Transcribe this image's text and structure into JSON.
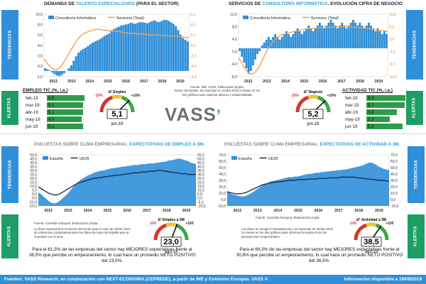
{
  "top_left": {
    "title_a": "DEMANDA DE ",
    "title_hl": "TALENTO ESPECIALIZADO",
    "title_b": " (PARA EL SECTOR)",
    "side": "TENDENCIAS"
  },
  "top_right": {
    "title_a": "SERVICIOS DE ",
    "title_hl": "CONSULTORÍA INFORMÁTICA",
    "title_b": ". EVOLUCIÓN CIFRA DE NEGOCIO",
    "side": "TENDENCIAS"
  },
  "source_note": {
    "l1": "Fuente: INE, VASS. Elaboración propia.",
    "l2": "Datos mensuales. Se expresan en media móvil 3 meses  en los",
    "l3": "dos gráficos para suavizar atípicos y estacionalidad."
  },
  "alerts_left": {
    "side": "ALERTAS",
    "table_title": "EMPLEO TIC (%, i.a.)",
    "rows": [
      {
        "m": "feb-19",
        "v": "5,5"
      },
      {
        "m": "mar-19",
        "v": "5,1"
      },
      {
        "m": "abr-19",
        "v": "5,1"
      },
      {
        "m": "may-19",
        "v": "4,9"
      },
      {
        "m": "jun-19",
        "v": "5,1"
      }
    ],
    "gauge": {
      "label": "Δ* Empleo",
      "min": "-10%",
      "max": "+10%",
      "value": "5,1",
      "date": "jun-19",
      "value_num": 5.1,
      "range": [
        -10,
        10
      ]
    }
  },
  "alerts_right": {
    "side": "ALERTAS",
    "table_title": "ACTIVIDAD TIC (%, i.a.)",
    "rows": [
      {
        "m": "feb-19",
        "v": "5,9"
      },
      {
        "m": "mar-19",
        "v": "5,7"
      },
      {
        "m": "abr-19",
        "v": "3,8"
      },
      {
        "m": "may-19",
        "v": "2,2"
      },
      {
        "m": "jun-19",
        "v": "5,2"
      }
    ],
    "gauge": {
      "label": "Δ* Negocio",
      "min": "-10%",
      "max": "+10%",
      "value": "5,2",
      "date": "jun-19",
      "value_num": 5.2,
      "range": [
        -10,
        10
      ]
    }
  },
  "logo": {
    "text": "VASS"
  },
  "bottom_left": {
    "title_a": "ENCUESTAS SOBRE CLIMA EMPRESARIAL: ",
    "title_hl": "EXPECTATIVAS DE EMPLEO A 3M.",
    "side_top": "TENDENCIAS",
    "side_bottom": "ALERTAS",
    "source": "Fuente: Comisión Europea. Elaboración propia.",
    "note": "La línea representa la evolución del sector para el caso de UE28 ( área de referencia (comparativa) para los datos del caso de España que se muestran con el área.",
    "gauge": {
      "label": "Δ* Empleo a 3M",
      "min": "-100",
      "max": "+100",
      "value": "23,0",
      "date": "ago-19",
      "value_num": 23.0,
      "range": [
        -100,
        100
      ]
    },
    "paragraph": "Para el 61,5% de las empresas del sector hay MEJORES expectativas frente al 38,5% que percibe un empeoramiento, lo cual hace un promedio NETO POSITIVO del 23,0%."
  },
  "bottom_right": {
    "title_a": "ENCUESTAS SOBRE CLIMA EMPRESARIAL: ",
    "title_hl": "EXPECTATIVAS DE ACTIVIDAD A 3M.",
    "side_top": "TENDENCIAS",
    "side_bottom": "ALERTAS",
    "source": "Fuente: Comisión Europea. Elaboración propia.",
    "note": "Los datos se recogen mensualmente y  se expresan en media móvil 12 meses  en los dos gráficos  para observar la tendencia de las percepciones empresariales.",
    "gauge": {
      "label": "Δ* Actividad a 3M",
      "min": "-100",
      "max": "+100",
      "value": "38,5",
      "date": "ago-19",
      "value_num": 38.5,
      "range": [
        -100,
        100
      ]
    },
    "paragraph": "Para el 69,3% de las empresas del sector hay MEJORES expectativas frente al 30,8% que percibe un empeoramiento, lo cual hace un promedio NETO POSITIVO del 38,5%."
  },
  "footer": {
    "left": "Fuentes: VASS Research, en colaboración con NEXT-ECONOMIA (CEPREDE), a partir de INE y Comisión Europea. VASS ©",
    "right": "Información disponible a 18/09/2019"
  },
  "colors": {
    "bar": "#2f8fd8",
    "line_orange": "#f0a050",
    "line_dark": "#15305a",
    "green": "#1e9e64"
  },
  "chart_data": [
    {
      "type": "bar",
      "id": "talent",
      "series": [
        {
          "name": "Consultoría Informática",
          "kind": "bar",
          "color": "#2f8fd8"
        },
        {
          "name": "Servicios (Total)",
          "kind": "line",
          "color": "#f0a050"
        }
      ],
      "x": [
        "2012",
        "2013",
        "2014",
        "2015",
        "2016",
        "2017",
        "2018",
        "2019"
      ],
      "y1lim": [
        -1.0,
        10.0
      ],
      "y1ticks": [
        "10,0",
        "8,0",
        "6,0",
        "4,0",
        "2,0",
        "0,0",
        "-1,0"
      ],
      "y2lim": [
        -6.0,
        6.0
      ],
      "y2ticks": [
        "6,0",
        "4,0",
        "2,0",
        "0,0",
        "-2,0",
        "-4,0",
        "-6,0"
      ],
      "bars": [
        0.5,
        0.3,
        0.1,
        -0.3,
        -0.6,
        -0.8,
        -0.9,
        -0.7,
        -0.4,
        0.0,
        0.5,
        1.0,
        1.8,
        2.6,
        3.2,
        3.6,
        3.9,
        4.1,
        4.4,
        4.7,
        5.0,
        5.2,
        5.4,
        5.6,
        5.9,
        6.2,
        6.4,
        6.6,
        7.0,
        7.4,
        7.6,
        7.8,
        8.0,
        8.1,
        8.2,
        8.3,
        8.5,
        8.4,
        8.3,
        8.5,
        8.6,
        8.6,
        8.5,
        8.4,
        8.6,
        8.8,
        8.9,
        8.7,
        8.6,
        8.8,
        9.0,
        9.0,
        8.8,
        8.6,
        8.3,
        7.9,
        7.2,
        6.4,
        5.8,
        5.5,
        5.2
      ],
      "line": [
        -2.5,
        -3.2,
        -3.8,
        -4.3,
        -4.6,
        -4.7,
        -4.5,
        -4.0,
        -3.4,
        -2.6,
        -1.8,
        -1.0,
        -0.2,
        0.6,
        1.2,
        1.7,
        2.1,
        2.4,
        2.6,
        2.8,
        2.9,
        3.0,
        3.1,
        3.1,
        3.0,
        2.9,
        2.9,
        2.8,
        2.8,
        2.7,
        2.7,
        2.7,
        2.6,
        2.5,
        2.4,
        2.4,
        2.3,
        2.3,
        2.3,
        2.2,
        2.2,
        2.2,
        2.1,
        2.1,
        2.0,
        2.0,
        2.0,
        2.0,
        1.9,
        1.9,
        1.9,
        1.9,
        1.8,
        1.8,
        1.8,
        1.8,
        1.7,
        1.7,
        1.6,
        1.5,
        1.5
      ]
    },
    {
      "type": "bar",
      "id": "consulting",
      "series": [
        {
          "name": "Consultoría Informática",
          "kind": "bar",
          "color": "#2f8fd8"
        },
        {
          "name": "Servicios (Total)",
          "kind": "line",
          "color": "#f0a050"
        }
      ],
      "x": [
        "2012",
        "2013",
        "2014",
        "2015",
        "2016",
        "2017",
        "2018",
        "2019"
      ],
      "y1lim": [
        -10.0,
        12.0
      ],
      "y1ticks": [
        "12,0",
        "8,0",
        "4,0",
        "0,0",
        "-4,0",
        "-8,0"
      ],
      "y2lim": [
        -10.0,
        10.0
      ],
      "y2ticks": [
        "10,0",
        "6,0",
        "2,0",
        "-2,0",
        "-6,0",
        "-10,0"
      ],
      "bars": [
        -1,
        -3,
        -5,
        -7,
        -9,
        -8,
        -6,
        -4,
        -2,
        -1,
        1,
        2,
        3,
        4,
        3,
        4,
        5,
        4,
        3,
        4,
        5,
        6,
        5,
        4,
        5,
        6,
        7,
        6,
        5,
        6,
        7,
        8,
        7,
        6,
        7,
        8,
        9,
        8,
        7,
        8,
        9,
        10,
        9,
        8,
        7,
        8,
        9,
        8,
        7,
        8,
        9,
        10,
        9,
        8,
        9,
        8,
        7,
        8,
        9,
        8,
        7,
        6,
        7,
        6,
        5,
        6,
        5
      ],
      "line": [
        -4,
        -5,
        -6.5,
        -7.5,
        -8.5,
        -9,
        -9.2,
        -8.8,
        -8,
        -7,
        -5.5,
        -4,
        -2.5,
        -1,
        0,
        1,
        1.8,
        2.5,
        3,
        3.4,
        3.6,
        3.8,
        4,
        4.2,
        4.3,
        4.5,
        4.6,
        4.8,
        5,
        5.1,
        5.2,
        5.3,
        5.4,
        5.5,
        5.5,
        5.6,
        5.7,
        5.7,
        5.8,
        5.8,
        5.8,
        5.9,
        5.9,
        5.9,
        6,
        6,
        6,
        6,
        6,
        5.9,
        5.9,
        5.8,
        5.8,
        5.7,
        5.6,
        5.6,
        5.5,
        5.4,
        5.3,
        5.2,
        5.1,
        5,
        4.9,
        4.8,
        4.7,
        4.6,
        4.5
      ]
    },
    {
      "type": "area",
      "id": "employment_exp",
      "series": [
        {
          "name": "España",
          "kind": "area",
          "color": "#2f8fd8"
        },
        {
          "name": "UE28",
          "kind": "line",
          "color": "#15305a"
        }
      ],
      "x": [
        "2012",
        "2013",
        "2014",
        "2015",
        "2016",
        "2017",
        "2018",
        "2019"
      ],
      "y1lim": [
        -15.0,
        50.0
      ],
      "y1ticks": [
        "50,0",
        "45,0",
        "40,0",
        "35,0",
        "30,0",
        "25,0",
        "20,0",
        "15,0",
        "10,0",
        "5,0",
        "0,0",
        "-5,0",
        "-10,0",
        "-15,0"
      ],
      "y2lim": [
        -10.0,
        55.0
      ],
      "y2ticks": [
        "55,0",
        "50,0",
        "45,0",
        "40,0",
        "35,0",
        "30,0",
        "25,0",
        "20,0",
        "15,0",
        "10,0",
        "5,0",
        "0,0",
        "-5,0",
        "-10,0"
      ],
      "area": [
        2,
        0,
        -3,
        -6,
        -9,
        -11,
        -12,
        -11,
        -9,
        -6,
        -3,
        0,
        4,
        8,
        12,
        15,
        18,
        20,
        22,
        24,
        25,
        27,
        28,
        29,
        30,
        30,
        31,
        32,
        33,
        33,
        34,
        34,
        35,
        35,
        36,
        36,
        37,
        37,
        37,
        38,
        38,
        38,
        39,
        39,
        39,
        40,
        40,
        41,
        41,
        42,
        43,
        43,
        44,
        45,
        45,
        44,
        43,
        42,
        40,
        39,
        38
      ],
      "line": [
        14,
        12,
        10,
        8,
        6,
        5,
        4,
        4,
        5,
        7,
        9,
        11,
        13,
        15,
        17,
        19,
        20,
        21,
        22,
        23,
        24,
        25,
        25,
        26,
        26,
        27,
        27,
        28,
        28,
        29,
        29,
        29,
        30,
        30,
        31,
        31,
        32,
        32,
        32,
        33,
        33,
        33,
        34,
        34,
        34,
        35,
        35,
        35,
        34,
        34,
        33,
        33,
        32,
        32,
        31,
        31,
        31,
        30,
        30,
        30,
        30
      ]
    },
    {
      "type": "area",
      "id": "activity_exp",
      "series": [
        {
          "name": "España",
          "kind": "area",
          "color": "#2f8fd8"
        },
        {
          "name": "UE28",
          "kind": "line",
          "color": "#15305a"
        }
      ],
      "x": [
        "2012",
        "2013",
        "2014",
        "2015",
        "2016",
        "2017",
        "2018",
        "2019"
      ],
      "y1lim": [
        -10.0,
        70.0
      ],
      "y1ticks": [
        "70,0",
        "60,0",
        "50,0",
        "40,0",
        "30,0",
        "20,0",
        "10,0",
        "0,0",
        "-10,0"
      ],
      "y2lim": [
        -10.0,
        70.0
      ],
      "y2ticks": [
        "70,0",
        "60,0",
        "50,0",
        "40,0",
        "30,0",
        "20,0",
        "10,0",
        "0,0",
        "-10,0"
      ],
      "area": [
        12,
        10,
        8,
        7,
        6,
        5,
        5,
        6,
        8,
        10,
        13,
        16,
        19,
        22,
        24,
        26,
        28,
        29,
        30,
        31,
        32,
        33,
        34,
        35,
        35,
        36,
        36,
        37,
        38,
        39,
        40,
        40,
        41,
        42,
        42,
        43,
        43,
        44,
        44,
        45,
        45,
        46,
        46,
        47,
        47,
        48,
        49,
        50,
        51,
        52,
        53,
        55,
        57,
        58,
        57,
        55,
        52,
        50,
        48,
        47,
        46
      ],
      "line": [
        12,
        11,
        10,
        9,
        9,
        9,
        10,
        11,
        13,
        15,
        17,
        19,
        21,
        23,
        24,
        25,
        26,
        27,
        27,
        28,
        28,
        29,
        29,
        30,
        30,
        30,
        31,
        31,
        31,
        31,
        32,
        32,
        32,
        32,
        33,
        33,
        33,
        33,
        34,
        34,
        34,
        34,
        35,
        35,
        35,
        35,
        35,
        35,
        34,
        34,
        33,
        33,
        32,
        32,
        31,
        31,
        30,
        30,
        30,
        29,
        29
      ]
    }
  ]
}
